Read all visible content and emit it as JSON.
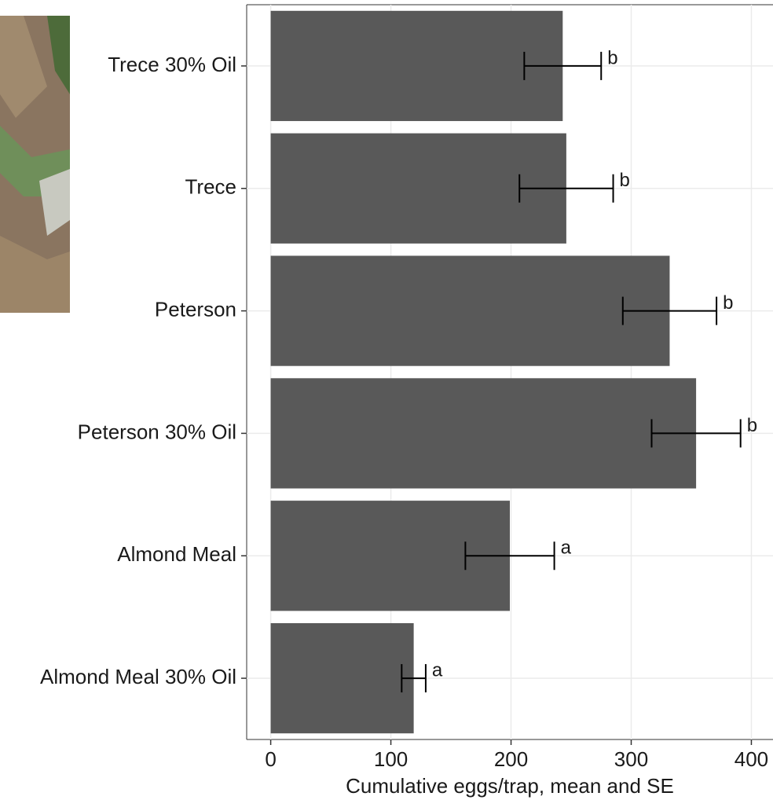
{
  "chart_data": {
    "type": "bar",
    "orientation": "horizontal",
    "x_label": "Cumulative eggs/trap, mean and SE",
    "categories": [
      "Trece 30% Oil",
      "Trece",
      "Peterson",
      "Peterson 30% Oil",
      "Almond Meal",
      "Almond Meal 30% Oil"
    ],
    "values": [
      243,
      246,
      332,
      354,
      199,
      119
    ],
    "errors": [
      32,
      39,
      39,
      37,
      37,
      10
    ],
    "letters": [
      "b",
      "b",
      "b",
      "b",
      "a",
      "a"
    ],
    "color": "#595959",
    "xlim": [
      -20,
      418
    ],
    "xticks": [
      0,
      100,
      200,
      300,
      400
    ],
    "grid": true
  }
}
